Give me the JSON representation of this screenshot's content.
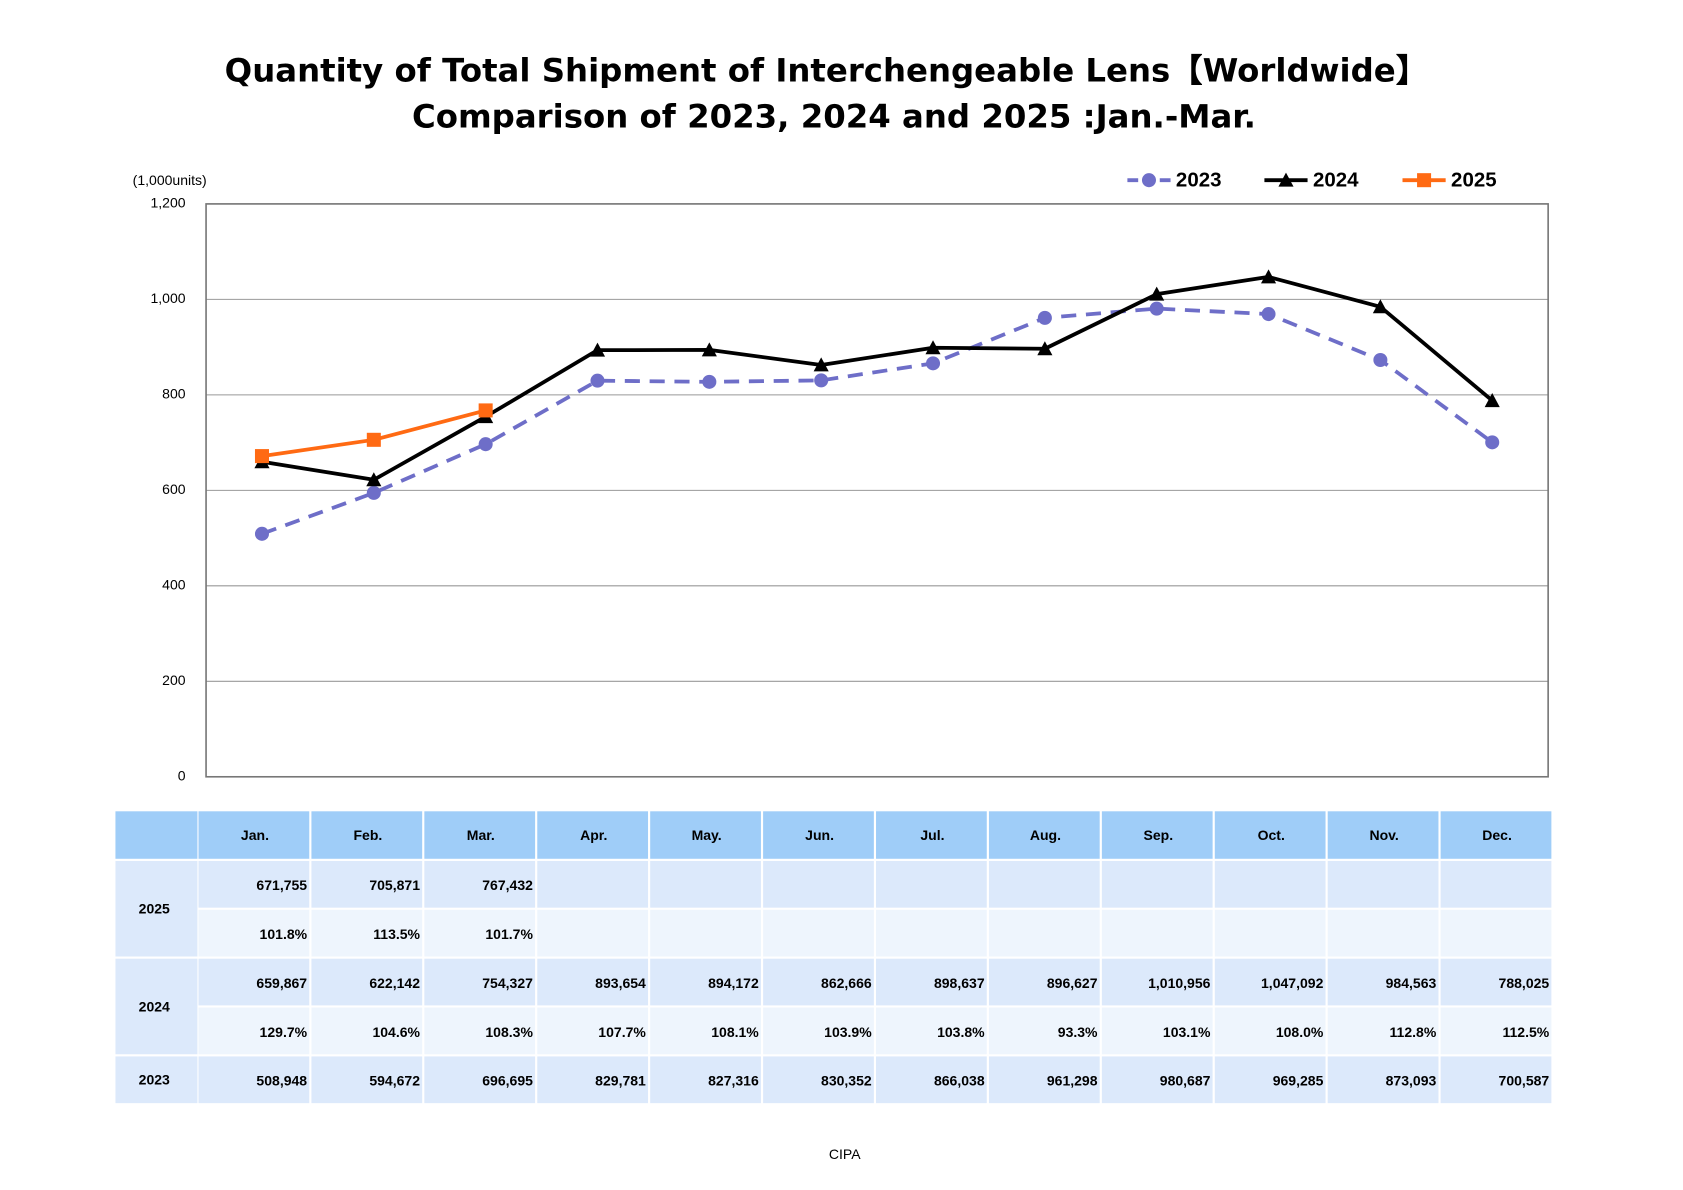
{
  "chart_data": {
    "type": "line",
    "title": "Quantity of Total Shipment of Interchengeable Lens【Worldwide】",
    "subtitle": "Comparison of 2023, 2024 and 2025 :Jan.-Mar.",
    "y_label": "(1,000units)",
    "source": "CIPA",
    "categories": [
      "Jan.",
      "Feb.",
      "Mar.",
      "Apr.",
      "May.",
      "Jun.",
      "Jul.",
      "Aug.",
      "Sep.",
      "Oct.",
      "Nov.",
      "Dec."
    ],
    "ylim": [
      0,
      1200
    ],
    "yticks": [
      0,
      200,
      400,
      600,
      800,
      {
        "value": 1000,
        "label": "1,000"
      },
      {
        "value": 1200,
        "label": "1,200"
      }
    ],
    "grid": true,
    "legend": "top-right",
    "series": [
      {
        "name": "2023",
        "color": "#6e6ec8",
        "dash": true,
        "marker": "circle",
        "values": [
          508.948,
          594.672,
          696.695,
          829.781,
          827.316,
          830.352,
          866.038,
          961.298,
          980.687,
          969.285,
          873.093,
          700.587
        ],
        "value_labels": [
          "508,948",
          "594,672",
          "696,695",
          "829,781",
          "827,316",
          "830,352",
          "866,038",
          "961,298",
          "980,687",
          "969,285",
          "873,093",
          "700,587"
        ]
      },
      {
        "name": "2024",
        "color": "#000000",
        "dash": false,
        "marker": "triangle",
        "values": [
          659.867,
          622.142,
          754.327,
          893.654,
          894.172,
          862.666,
          898.637,
          896.627,
          1010.956,
          1047.092,
          984.563,
          788.025
        ],
        "value_labels": [
          "659,867",
          "622,142",
          "754,327",
          "893,654",
          "894,172",
          "862,666",
          "898,637",
          "896,627",
          "1,010,956",
          "1,047,092",
          "984,563",
          "788,025"
        ],
        "ratio_labels": [
          "129.7%",
          "104.6%",
          "108.3%",
          "107.7%",
          "108.1%",
          "103.9%",
          "103.8%",
          "93.3%",
          "103.1%",
          "108.0%",
          "112.8%",
          "112.5%"
        ]
      },
      {
        "name": "2025",
        "color": "#ff6a13",
        "dash": false,
        "marker": "square",
        "values": [
          671.755,
          705.871,
          767.432,
          null,
          null,
          null,
          null,
          null,
          null,
          null,
          null,
          null
        ],
        "value_labels": [
          "671,755",
          "705,871",
          "767,432",
          null,
          null,
          null,
          null,
          null,
          null,
          null,
          null,
          null
        ],
        "ratio_labels": [
          "101.8%",
          "113.5%",
          "101.7%",
          null,
          null,
          null,
          null,
          null,
          null,
          null,
          null,
          null
        ]
      }
    ]
  }
}
